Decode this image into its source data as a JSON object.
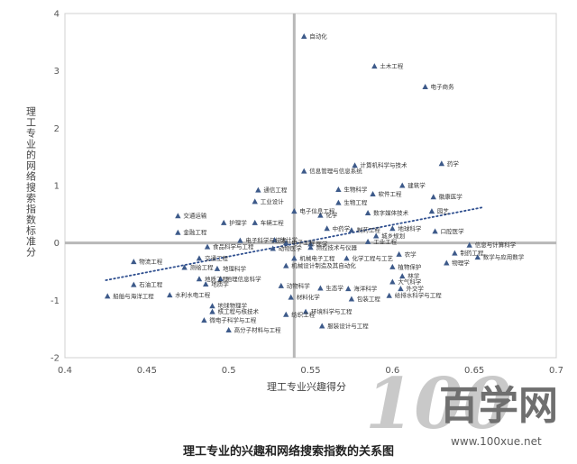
{
  "chart_data": {
    "type": "scatter",
    "xlabel": "理工专业兴趣得分",
    "ylabel": "理工专业的网络搜索指数标准分",
    "xlim": [
      0.4,
      0.7
    ],
    "ylim": [
      -2,
      4
    ],
    "x_ticks": [
      "0.4",
      "0.45",
      "0.5",
      "0.55",
      "0.6",
      "0.65",
      "0.7"
    ],
    "y_ticks": [
      "-2",
      "-1",
      "0",
      "1",
      "2",
      "3",
      "4"
    ],
    "reference_lines": {
      "x": 0.54,
      "y": 0
    },
    "trendline": {
      "style": "dotted",
      "x": [
        0.425,
        0.655
      ],
      "y": [
        -0.65,
        0.62
      ]
    },
    "grid": false,
    "marker": "triangle",
    "marker_color": "#3d5a8a",
    "trendline_color": "#2f4f8f",
    "reference_line_color": "#b8b8b8",
    "points": [
      {
        "label": "自动化",
        "x": 0.546,
        "y": 3.6
      },
      {
        "label": "土木工程",
        "x": 0.589,
        "y": 3.08
      },
      {
        "label": "电子商务",
        "x": 0.62,
        "y": 2.72
      },
      {
        "label": "药学",
        "x": 0.63,
        "y": 1.38
      },
      {
        "label": "计算机科学与技术",
        "x": 0.577,
        "y": 1.35
      },
      {
        "label": "信息管理与信息系统",
        "x": 0.546,
        "y": 1.25
      },
      {
        "label": "生物科学",
        "x": 0.567,
        "y": 0.93
      },
      {
        "label": "建筑学",
        "x": 0.606,
        "y": 1.0
      },
      {
        "label": "软件工程",
        "x": 0.588,
        "y": 0.85
      },
      {
        "label": "徽康医学",
        "x": 0.625,
        "y": 0.8
      },
      {
        "label": "通信工程",
        "x": 0.518,
        "y": 0.92
      },
      {
        "label": "工业设计",
        "x": 0.516,
        "y": 0.72
      },
      {
        "label": "生物工程",
        "x": 0.567,
        "y": 0.7
      },
      {
        "label": "电子信息工程",
        "x": 0.54,
        "y": 0.55
      },
      {
        "label": "化学",
        "x": 0.556,
        "y": 0.48
      },
      {
        "label": "数字媒体技术",
        "x": 0.585,
        "y": 0.52
      },
      {
        "label": "园艺",
        "x": 0.624,
        "y": 0.55
      },
      {
        "label": "交通运输",
        "x": 0.469,
        "y": 0.47
      },
      {
        "label": "护理学",
        "x": 0.497,
        "y": 0.35
      },
      {
        "label": "车辆工程",
        "x": 0.516,
        "y": 0.35
      },
      {
        "label": "金融工程",
        "x": 0.469,
        "y": 0.18
      },
      {
        "label": "中药学",
        "x": 0.56,
        "y": 0.25
      },
      {
        "label": "制药工程",
        "x": 0.575,
        "y": 0.22
      },
      {
        "label": "地球科学",
        "x": 0.6,
        "y": 0.25
      },
      {
        "label": "口腔医学",
        "x": 0.626,
        "y": 0.2
      },
      {
        "label": "电子科学与技术",
        "x": 0.507,
        "y": 0.04
      },
      {
        "label": "电子工程",
        "x": 0.535,
        "y": 0.0
      },
      {
        "label": "统计学",
        "x": 0.528,
        "y": 0.05
      },
      {
        "label": "医学",
        "x": 0.55,
        "y": -0.02
      },
      {
        "label": "城乡规划",
        "x": 0.59,
        "y": 0.12
      },
      {
        "label": "工业工程",
        "x": 0.585,
        "y": 0.02
      },
      {
        "label": "食品科学与工程",
        "x": 0.487,
        "y": -0.07
      },
      {
        "label": "动物医学",
        "x": 0.527,
        "y": -0.1
      },
      {
        "label": "测控技术与仪器",
        "x": 0.55,
        "y": -0.08
      },
      {
        "label": "信息与计算科学",
        "x": 0.647,
        "y": -0.04
      },
      {
        "label": "制药工程",
        "x": 0.638,
        "y": -0.18
      },
      {
        "label": "数学与应用数学",
        "x": 0.652,
        "y": -0.25
      },
      {
        "label": "物流工程",
        "x": 0.442,
        "y": -0.33
      },
      {
        "label": "交通工程",
        "x": 0.482,
        "y": -0.27
      },
      {
        "label": "机械电子工程",
        "x": 0.54,
        "y": -0.27
      },
      {
        "label": "化学工程与工艺",
        "x": 0.572,
        "y": -0.27
      },
      {
        "label": "农学",
        "x": 0.604,
        "y": -0.2
      },
      {
        "label": "物理学",
        "x": 0.633,
        "y": -0.35
      },
      {
        "label": "测绘工程",
        "x": 0.473,
        "y": -0.43
      },
      {
        "label": "地理科学",
        "x": 0.493,
        "y": -0.45
      },
      {
        "label": "机械设计制造及其自动化",
        "x": 0.535,
        "y": -0.4
      },
      {
        "label": "植物保护",
        "x": 0.6,
        "y": -0.42
      },
      {
        "label": "地质工程",
        "x": 0.482,
        "y": -0.63
      },
      {
        "label": "地理信息科学",
        "x": 0.495,
        "y": -0.63
      },
      {
        "label": "林学",
        "x": 0.606,
        "y": -0.58
      },
      {
        "label": "石油工程",
        "x": 0.442,
        "y": -0.73
      },
      {
        "label": "地质学",
        "x": 0.486,
        "y": -0.72
      },
      {
        "label": "动物科学",
        "x": 0.532,
        "y": -0.75
      },
      {
        "label": "大气科学",
        "x": 0.6,
        "y": -0.68
      },
      {
        "label": "海洋科学",
        "x": 0.573,
        "y": -0.8
      },
      {
        "label": "生态学",
        "x": 0.556,
        "y": -0.79
      },
      {
        "label": "外交学",
        "x": 0.605,
        "y": -0.8
      },
      {
        "label": "船舶与海洋工程",
        "x": 0.426,
        "y": -0.93
      },
      {
        "label": "水利水电工程",
        "x": 0.464,
        "y": -0.91
      },
      {
        "label": "材料化学",
        "x": 0.538,
        "y": -0.95
      },
      {
        "label": "给排水科学与工程",
        "x": 0.598,
        "y": -0.92
      },
      {
        "label": "包装工程",
        "x": 0.575,
        "y": -0.98
      },
      {
        "label": "地球物理学",
        "x": 0.49,
        "y": -1.1
      },
      {
        "label": "核工程与核技术",
        "x": 0.49,
        "y": -1.2
      },
      {
        "label": "环境科学与工程",
        "x": 0.547,
        "y": -1.2
      },
      {
        "label": "纺织工程",
        "x": 0.535,
        "y": -1.25
      },
      {
        "label": "微电子科学与工程",
        "x": 0.485,
        "y": -1.35
      },
      {
        "label": "服装设计与工程",
        "x": 0.557,
        "y": -1.45
      },
      {
        "label": "高分子材料与工程",
        "x": 0.5,
        "y": -1.52
      }
    ]
  },
  "caption": "理工专业的兴趣和网络搜索指数的关系图",
  "watermark": {
    "text": "百学网",
    "url": "www.100xue.net"
  }
}
